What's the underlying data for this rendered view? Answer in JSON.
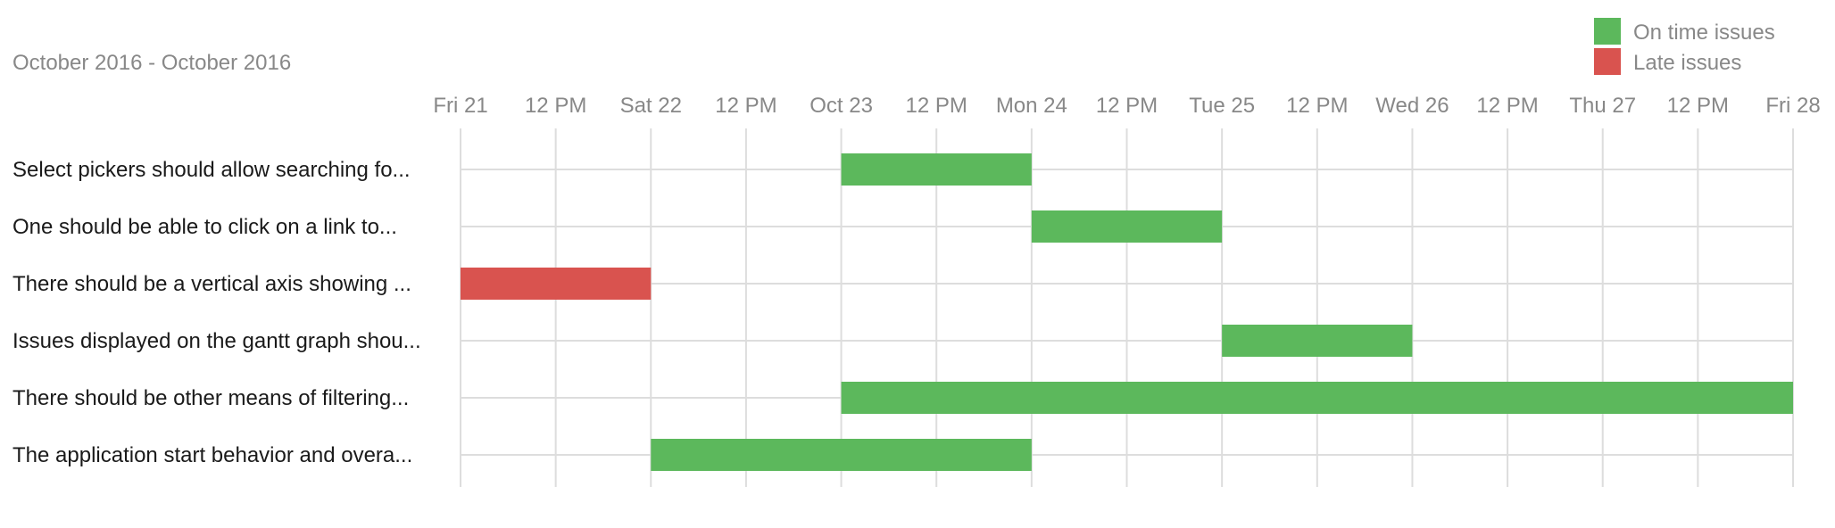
{
  "chart_data": {
    "type": "gantt",
    "title": "October 2016 - October 2016",
    "x_range": [
      "2016-10-21T00:00",
      "2016-10-28T00:00"
    ],
    "x_ticks": [
      {
        "t": "2016-10-21T00:00",
        "label": "Fri 21"
      },
      {
        "t": "2016-10-21T12:00",
        "label": "12 PM"
      },
      {
        "t": "2016-10-22T00:00",
        "label": "Sat 22"
      },
      {
        "t": "2016-10-22T12:00",
        "label": "12 PM"
      },
      {
        "t": "2016-10-23T00:00",
        "label": "Oct 23"
      },
      {
        "t": "2016-10-23T12:00",
        "label": "12 PM"
      },
      {
        "t": "2016-10-24T00:00",
        "label": "Mon 24"
      },
      {
        "t": "2016-10-24T12:00",
        "label": "12 PM"
      },
      {
        "t": "2016-10-25T00:00",
        "label": "Tue 25"
      },
      {
        "t": "2016-10-25T12:00",
        "label": "12 PM"
      },
      {
        "t": "2016-10-26T00:00",
        "label": "Wed 26"
      },
      {
        "t": "2016-10-26T12:00",
        "label": "12 PM"
      },
      {
        "t": "2016-10-27T00:00",
        "label": "Thu 27"
      },
      {
        "t": "2016-10-27T12:00",
        "label": "12 PM"
      },
      {
        "t": "2016-10-28T00:00",
        "label": "Fri 28"
      }
    ],
    "legend": {
      "position": "top-right",
      "entries": [
        {
          "label": "On time issues",
          "status": "on_time",
          "color": "#5cb85c"
        },
        {
          "label": "Late issues",
          "status": "late",
          "color": "#d9534f"
        }
      ]
    },
    "tasks": [
      {
        "label": "Select pickers should allow searching fo...",
        "start": "2016-10-23T00:00",
        "end": "2016-10-24T00:00",
        "status": "on_time"
      },
      {
        "label": "One should be able to click on a link to...",
        "start": "2016-10-24T00:00",
        "end": "2016-10-25T00:00",
        "status": "on_time"
      },
      {
        "label": "There should be a vertical axis showing ...",
        "start": "2016-10-21T00:00",
        "end": "2016-10-22T00:00",
        "status": "late"
      },
      {
        "label": "Issues displayed on the gantt graph shou...",
        "start": "2016-10-25T00:00",
        "end": "2016-10-26T00:00",
        "status": "on_time"
      },
      {
        "label": "There should be other means of filtering...",
        "start": "2016-10-23T00:00",
        "end": "2016-10-28T00:00",
        "status": "on_time"
      },
      {
        "label": "The application start behavior and overa...",
        "start": "2016-10-22T00:00",
        "end": "2016-10-24T00:00",
        "status": "on_time"
      }
    ]
  }
}
